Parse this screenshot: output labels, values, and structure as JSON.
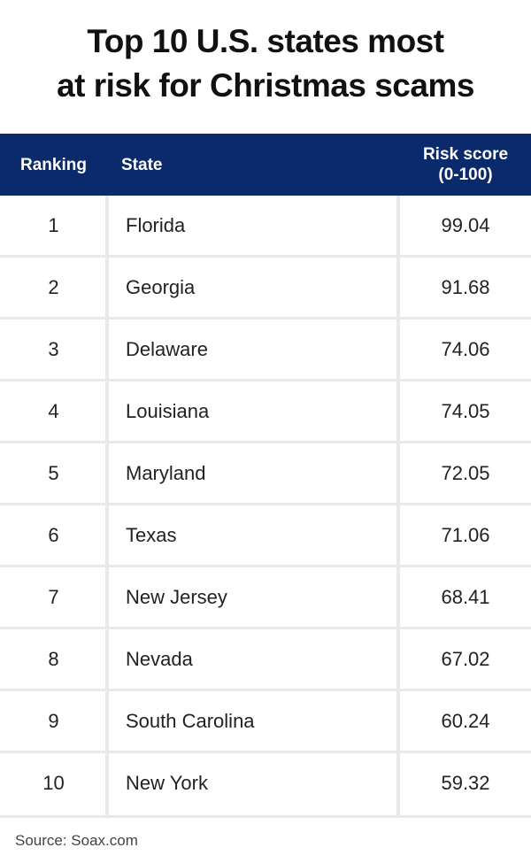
{
  "chart_data": {
    "type": "table",
    "title_lines": [
      "Top 10 U.S. states most",
      "at risk for Christmas scams"
    ],
    "columns": [
      "Ranking",
      "State",
      "Risk score",
      "(0-100)"
    ],
    "rows": [
      {
        "rank": "1",
        "state": "Florida",
        "score": "99.04"
      },
      {
        "rank": "2",
        "state": "Georgia",
        "score": "91.68"
      },
      {
        "rank": "3",
        "state": "Delaware",
        "score": "74.06"
      },
      {
        "rank": "4",
        "state": "Louisiana",
        "score": "74.05"
      },
      {
        "rank": "5",
        "state": "Maryland",
        "score": "72.05"
      },
      {
        "rank": "6",
        "state": "Texas",
        "score": "71.06"
      },
      {
        "rank": "7",
        "state": "New Jersey",
        "score": "68.41"
      },
      {
        "rank": "8",
        "state": "Nevada",
        "score": "67.02"
      },
      {
        "rank": "9",
        "state": "South Carolina",
        "score": "60.24"
      },
      {
        "rank": "10",
        "state": "New York",
        "score": "59.32"
      }
    ],
    "source": "Source: Soax.com"
  },
  "colors": {
    "header_bg": "#0a2a6b",
    "divider": "#e9e9e9"
  }
}
